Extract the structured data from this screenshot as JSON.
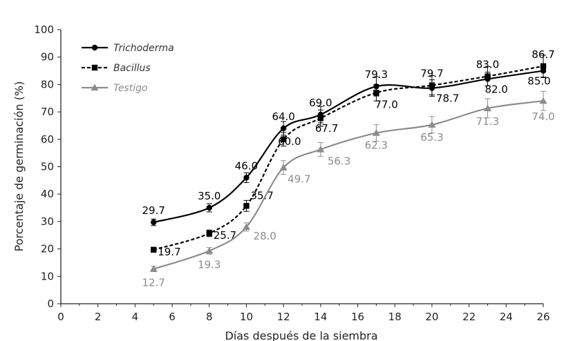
{
  "chart_data": {
    "type": "line",
    "xlabel": "Días después de la siembra",
    "ylabel": "Porcentaje de germinación (%)",
    "xlim": [
      0,
      26
    ],
    "ylim": [
      0,
      100
    ],
    "xticks": [
      0,
      2,
      4,
      6,
      8,
      10,
      12,
      14,
      16,
      18,
      20,
      22,
      24,
      26
    ],
    "yticks": [
      0,
      10,
      20,
      30,
      40,
      50,
      60,
      70,
      80,
      90,
      100
    ],
    "grid": false,
    "legend_position": "top-left",
    "x": [
      5,
      8,
      10,
      12,
      14,
      17,
      20,
      23,
      26
    ],
    "series": [
      {
        "name": "Trichoderma",
        "color": "#000000",
        "marker": "circle",
        "line": "solid",
        "values": [
          29.7,
          35.0,
          46.0,
          64.0,
          69.0,
          79.3,
          78.7,
          82.0,
          85.0
        ],
        "labels": [
          "29.7",
          "35.0",
          "46.0",
          "64.0",
          "69.0",
          "79.3",
          "78.7",
          "82.0",
          "85.0"
        ],
        "errors": [
          1.2,
          1.5,
          1.8,
          2.5,
          3.0,
          3.5,
          3.0,
          2.5,
          2.5
        ]
      },
      {
        "name": "Bacillus",
        "color": "#000000",
        "marker": "square",
        "line": "dashed",
        "values": [
          19.7,
          25.7,
          35.7,
          60.0,
          67.7,
          77.0,
          79.7,
          83.0,
          86.7
        ],
        "labels": [
          "19.7",
          "25.7",
          "35.7",
          "60.0",
          "67.7",
          "77.0",
          "79.7",
          "83.0",
          "86.7"
        ],
        "errors": [
          0.8,
          1.2,
          2.0,
          2.5,
          3.0,
          3.0,
          3.5,
          3.5,
          4.0
        ]
      },
      {
        "name": "Testigo",
        "color": "#8c8c8c",
        "marker": "triangle",
        "line": "solid",
        "values": [
          12.7,
          19.3,
          28.0,
          49.7,
          56.3,
          62.3,
          65.3,
          71.3,
          74.0
        ],
        "labels": [
          "12.7",
          "19.3",
          "28.0",
          "49.7",
          "56.3",
          "62.3",
          "65.3",
          "71.3",
          "74.0"
        ],
        "errors": [
          1.0,
          1.2,
          1.5,
          2.5,
          2.5,
          3.0,
          3.0,
          3.5,
          3.5
        ]
      }
    ]
  }
}
